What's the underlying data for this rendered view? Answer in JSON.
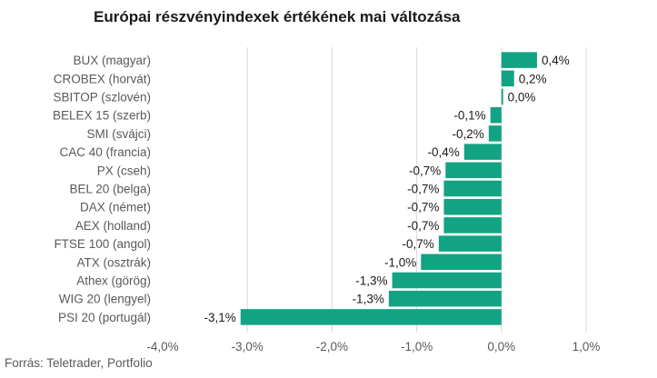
{
  "chart_data": {
    "type": "bar",
    "orientation": "horizontal",
    "title": "Európai részvényindexek értékének mai változása",
    "categories": [
      "BUX (magyar)",
      "CROBEX (horvát)",
      "SBITOP (szlovén)",
      "BELEX 15 (szerb)",
      "SMI (svájci)",
      "CAC 40 (francia)",
      "PX (cseh)",
      "BEL 20 (belga)",
      "DAX (német)",
      "AEX (holland)",
      "FTSE 100 (angol)",
      "ATX (osztrák)",
      "Athex (görög)",
      "WIG 20 (lengyel)",
      "PSI 20 (portugál)"
    ],
    "values": [
      0.42,
      0.15,
      0.02,
      -0.13,
      -0.15,
      -0.44,
      -0.66,
      -0.68,
      -0.68,
      -0.68,
      -0.74,
      -0.95,
      -1.29,
      -1.33,
      -3.08
    ],
    "value_labels": [
      "0,4%",
      "0,2%",
      "0,0%",
      "-0,1%",
      "-0,2%",
      "-0,4%",
      "-0,7%",
      "-0,7%",
      "-0,7%",
      "-0,7%",
      "-0,7%",
      "-1,0%",
      "-1,3%",
      "-1,3%",
      "-3,1%"
    ],
    "xlim": [
      -4.0,
      1.0
    ],
    "x_ticks": [
      -4.0,
      -3.0,
      -2.0,
      -1.0,
      0.0,
      1.0
    ],
    "x_tick_labels": [
      "-4,0%",
      "-3,0%",
      "-2,0%",
      "-1,0%",
      "0,0%",
      "1,0%"
    ],
    "grid": true,
    "bar_color": "#12a383"
  },
  "source": "Forrás: Teletrader, Portfolio"
}
